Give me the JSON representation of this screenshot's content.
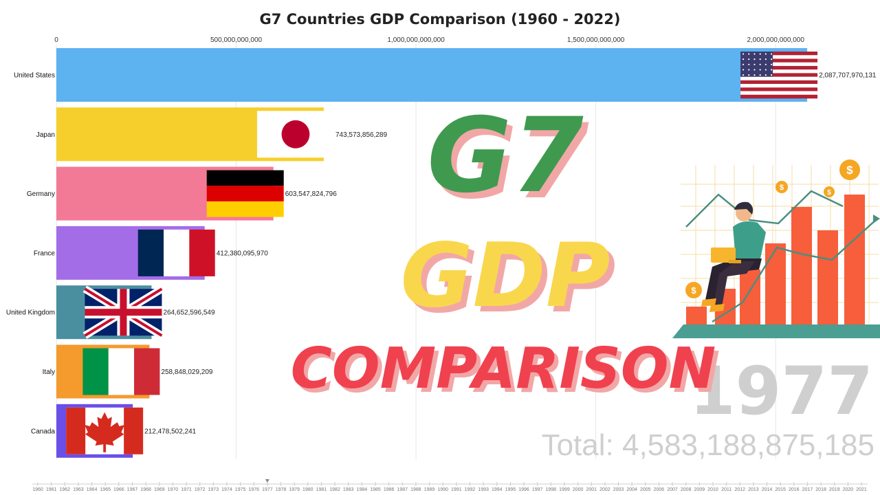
{
  "chart_data": {
    "type": "bar",
    "title": "G7 Countries GDP Comparison (1960 - 2022)",
    "orientation": "horizontal",
    "xlim": [
      0,
      2100000000000
    ],
    "x_ticks": [
      0,
      500000000000,
      1000000000000,
      1500000000000,
      2000000000000
    ],
    "x_tick_labels": [
      "0",
      "500,000,000,000",
      "1,000,000,000,000",
      "1,500,000,000,000",
      "2,000,000,000,000"
    ],
    "grid": true,
    "categories": [
      "United States",
      "Japan",
      "Germany",
      "France",
      "United Kingdom",
      "Italy",
      "Canada"
    ],
    "values": [
      2087707970131,
      743573856289,
      603547824796,
      412380095970,
      264652596549,
      258848029209,
      212478502241
    ],
    "value_labels": [
      "2,087,707,970,131",
      "743,573,856,289",
      "603,547,824,796",
      "412,380,095,970",
      "264,652,596,549",
      "258,848,029,209",
      "212,478,502,241"
    ],
    "bar_colors": [
      "#5db2f0",
      "#f7cf2c",
      "#f37a96",
      "#a46de8",
      "#4a8fa0",
      "#f59a2c",
      "#6a4fe8"
    ],
    "flags": [
      "us-flag-icon",
      "japan-flag-icon",
      "germany-flag-icon",
      "france-flag-icon",
      "uk-flag-icon",
      "italy-flag-icon",
      "canada-flag-icon"
    ],
    "current_year": "1977",
    "total_label": "Total: 4,583,188,875,185",
    "timeline_years": [
      "1960",
      "1961",
      "1962",
      "1963",
      "1964",
      "1965",
      "1966",
      "1967",
      "1968",
      "1969",
      "1970",
      "1971",
      "1972",
      "1973",
      "1974",
      "1975",
      "1976",
      "1977",
      "1978",
      "1979",
      "1980",
      "1981",
      "1982",
      "1983",
      "1984",
      "1985",
      "1986",
      "1987",
      "1988",
      "1989",
      "1990",
      "1991",
      "1992",
      "1993",
      "1994",
      "1995",
      "1996",
      "1997",
      "1998",
      "1999",
      "2000",
      "2001",
      "2002",
      "2003",
      "2004",
      "2005",
      "2006",
      "2007",
      "2008",
      "2009",
      "2010",
      "2011",
      "2012",
      "2013",
      "2014",
      "2015",
      "2016",
      "2017",
      "2018",
      "2019",
      "2020",
      "2021"
    ]
  },
  "overlay": {
    "line1": "G7",
    "line2": "GDP",
    "line3": "COMPARISON",
    "colors": {
      "g7": "#3f9a4f",
      "gdp": "#f9d74c",
      "comparison": "#f0414f",
      "shadow": "#f2a7a7"
    },
    "illustration_icon": "person-on-rising-bar-chart-illustration"
  }
}
